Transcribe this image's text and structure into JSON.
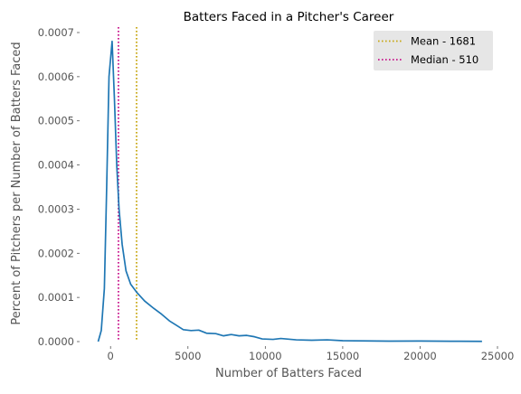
{
  "chart_data": {
    "type": "line",
    "title": "Batters Faced in a Pitcher's Career",
    "xlabel": "Number of Batters Faced",
    "ylabel": "Percent of Pitchers per Number of Batters Faced",
    "xlim": [
      -2000,
      25000
    ],
    "ylim": [
      0,
      0.0007
    ],
    "grid": false,
    "legend_position": "top-right",
    "x_ticks": [
      0,
      5000,
      10000,
      15000,
      20000,
      25000
    ],
    "x_tick_labels": [
      "0",
      "5000",
      "10000",
      "15000",
      "20000",
      "25000"
    ],
    "y_ticks": [
      0,
      0.0001,
      0.0002,
      0.0003,
      0.0004,
      0.0005,
      0.0006,
      0.0007
    ],
    "y_tick_labels": [
      "0.0000",
      "0.0001",
      "0.0002",
      "0.0003",
      "0.0004",
      "0.0005",
      "0.0006",
      "0.0007"
    ],
    "series": [
      {
        "color": "#1f77b4",
        "points": [
          [
            -800,
            0.0
          ],
          [
            -600,
            2.5e-05
          ],
          [
            -400,
            0.00012
          ],
          [
            -250,
            0.00035
          ],
          [
            -100,
            0.0006
          ],
          [
            100,
            0.00068
          ],
          [
            250,
            0.00055
          ],
          [
            400,
            0.0004
          ],
          [
            550,
            0.0003
          ],
          [
            750,
            0.00022
          ],
          [
            1000,
            0.00016
          ],
          [
            1300,
            0.00013
          ],
          [
            1681,
            0.000112
          ],
          [
            2200,
            9.2e-05
          ],
          [
            2800,
            7.5e-05
          ],
          [
            3300,
            6.2e-05
          ],
          [
            3800,
            4.7e-05
          ],
          [
            4300,
            3.6e-05
          ],
          [
            4700,
            2.7e-05
          ],
          [
            5200,
            2.5e-05
          ],
          [
            5700,
            2.6e-05
          ],
          [
            6200,
            1.9e-05
          ],
          [
            6800,
            1.8e-05
          ],
          [
            7300,
            1.3e-05
          ],
          [
            7800,
            1.6e-05
          ],
          [
            8300,
            1.3e-05
          ],
          [
            8800,
            1.4e-05
          ],
          [
            9300,
            1.1e-05
          ],
          [
            9800,
            6e-06
          ],
          [
            10500,
            5e-06
          ],
          [
            11000,
            7e-06
          ],
          [
            12000,
            4e-06
          ],
          [
            13000,
            3e-06
          ],
          [
            14000,
            4e-06
          ],
          [
            15000,
            2e-06
          ],
          [
            16500,
            1.5e-06
          ],
          [
            18000,
            1e-06
          ],
          [
            20000,
            1.2e-06
          ],
          [
            22000,
            8e-07
          ],
          [
            24000,
            5e-07
          ]
        ]
      }
    ],
    "vlines": [
      {
        "label": "Mean - 1681",
        "x": 1681,
        "color": "#c8a814"
      },
      {
        "label": "Median - 510",
        "x": 510,
        "color": "#c8148c"
      }
    ]
  }
}
